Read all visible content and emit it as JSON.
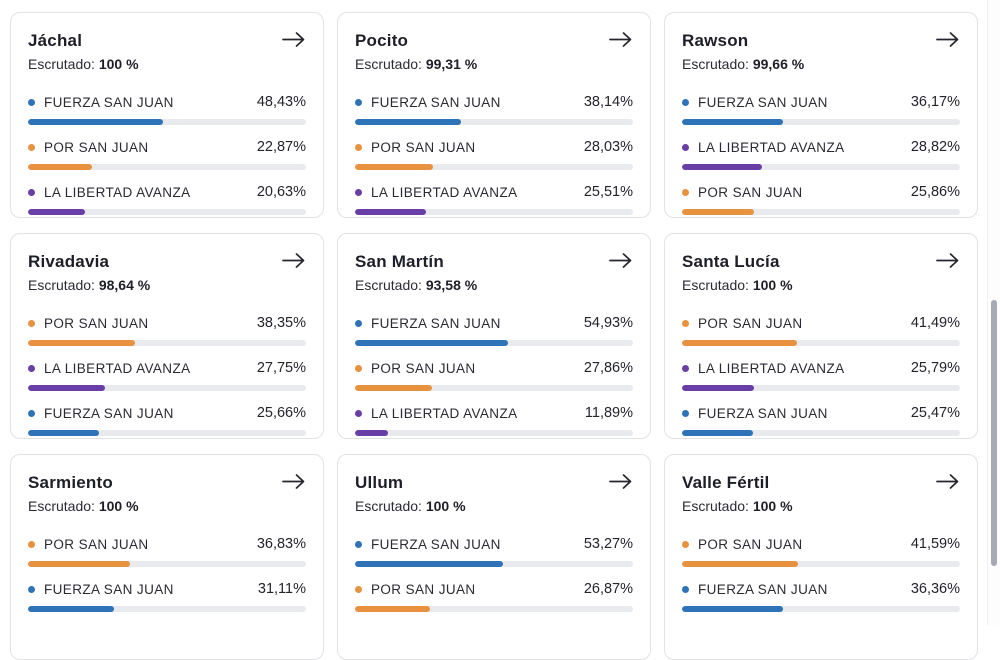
{
  "labels": {
    "escrutado": "Escrutado:",
    "arrow_icon": "arrow-right"
  },
  "party_colors": {
    "FUERZA SAN JUAN": "#2e73b8",
    "POR SAN JUAN": "#e8913f",
    "LA LIBERTAD AVANZA": "#6a3ea7"
  },
  "ui_colors": {
    "track": "#e9eaee",
    "card_border": "#e2e2e7",
    "text": "#26262e",
    "scrollbar_thumb": "#a6aab4"
  },
  "cards": [
    {
      "title": "Jáchal",
      "escrutado": "100 %",
      "results": [
        {
          "party": "FUERZA SAN JUAN",
          "pct_label": "48,43%",
          "pct": 48.43
        },
        {
          "party": "POR SAN JUAN",
          "pct_label": "22,87%",
          "pct": 22.87
        },
        {
          "party": "LA LIBERTAD AVANZA",
          "pct_label": "20,63%",
          "pct": 20.63
        }
      ]
    },
    {
      "title": "Pocito",
      "escrutado": "99,31 %",
      "results": [
        {
          "party": "FUERZA SAN JUAN",
          "pct_label": "38,14%",
          "pct": 38.14
        },
        {
          "party": "POR SAN JUAN",
          "pct_label": "28,03%",
          "pct": 28.03
        },
        {
          "party": "LA LIBERTAD AVANZA",
          "pct_label": "25,51%",
          "pct": 25.51
        }
      ]
    },
    {
      "title": "Rawson",
      "escrutado": "99,66 %",
      "results": [
        {
          "party": "FUERZA SAN JUAN",
          "pct_label": "36,17%",
          "pct": 36.17
        },
        {
          "party": "LA LIBERTAD AVANZA",
          "pct_label": "28,82%",
          "pct": 28.82
        },
        {
          "party": "POR SAN JUAN",
          "pct_label": "25,86%",
          "pct": 25.86
        }
      ]
    },
    {
      "title": "Rivadavia",
      "escrutado": "98,64 %",
      "results": [
        {
          "party": "POR SAN JUAN",
          "pct_label": "38,35%",
          "pct": 38.35
        },
        {
          "party": "LA LIBERTAD AVANZA",
          "pct_label": "27,75%",
          "pct": 27.75
        },
        {
          "party": "FUERZA SAN JUAN",
          "pct_label": "25,66%",
          "pct": 25.66
        }
      ]
    },
    {
      "title": "San Martín",
      "escrutado": "93,58 %",
      "results": [
        {
          "party": "FUERZA SAN JUAN",
          "pct_label": "54,93%",
          "pct": 54.93
        },
        {
          "party": "POR SAN JUAN",
          "pct_label": "27,86%",
          "pct": 27.86
        },
        {
          "party": "LA LIBERTAD AVANZA",
          "pct_label": "11,89%",
          "pct": 11.89
        }
      ]
    },
    {
      "title": "Santa Lucía",
      "escrutado": "100 %",
      "results": [
        {
          "party": "POR SAN JUAN",
          "pct_label": "41,49%",
          "pct": 41.49
        },
        {
          "party": "LA LIBERTAD AVANZA",
          "pct_label": "25,79%",
          "pct": 25.79
        },
        {
          "party": "FUERZA SAN JUAN",
          "pct_label": "25,47%",
          "pct": 25.47
        }
      ]
    },
    {
      "title": "Sarmiento",
      "escrutado": "100 %",
      "results": [
        {
          "party": "POR SAN JUAN",
          "pct_label": "36,83%",
          "pct": 36.83
        },
        {
          "party": "FUERZA SAN JUAN",
          "pct_label": "31,11%",
          "pct": 31.11
        }
      ]
    },
    {
      "title": "Ullum",
      "escrutado": "100 %",
      "results": [
        {
          "party": "FUERZA SAN JUAN",
          "pct_label": "53,27%",
          "pct": 53.27
        },
        {
          "party": "POR SAN JUAN",
          "pct_label": "26,87%",
          "pct": 26.87
        }
      ]
    },
    {
      "title": "Valle Fértil",
      "escrutado": "100 %",
      "results": [
        {
          "party": "POR SAN JUAN",
          "pct_label": "41,59%",
          "pct": 41.59
        },
        {
          "party": "FUERZA SAN JUAN",
          "pct_label": "36,36%",
          "pct": 36.36
        }
      ]
    }
  ]
}
